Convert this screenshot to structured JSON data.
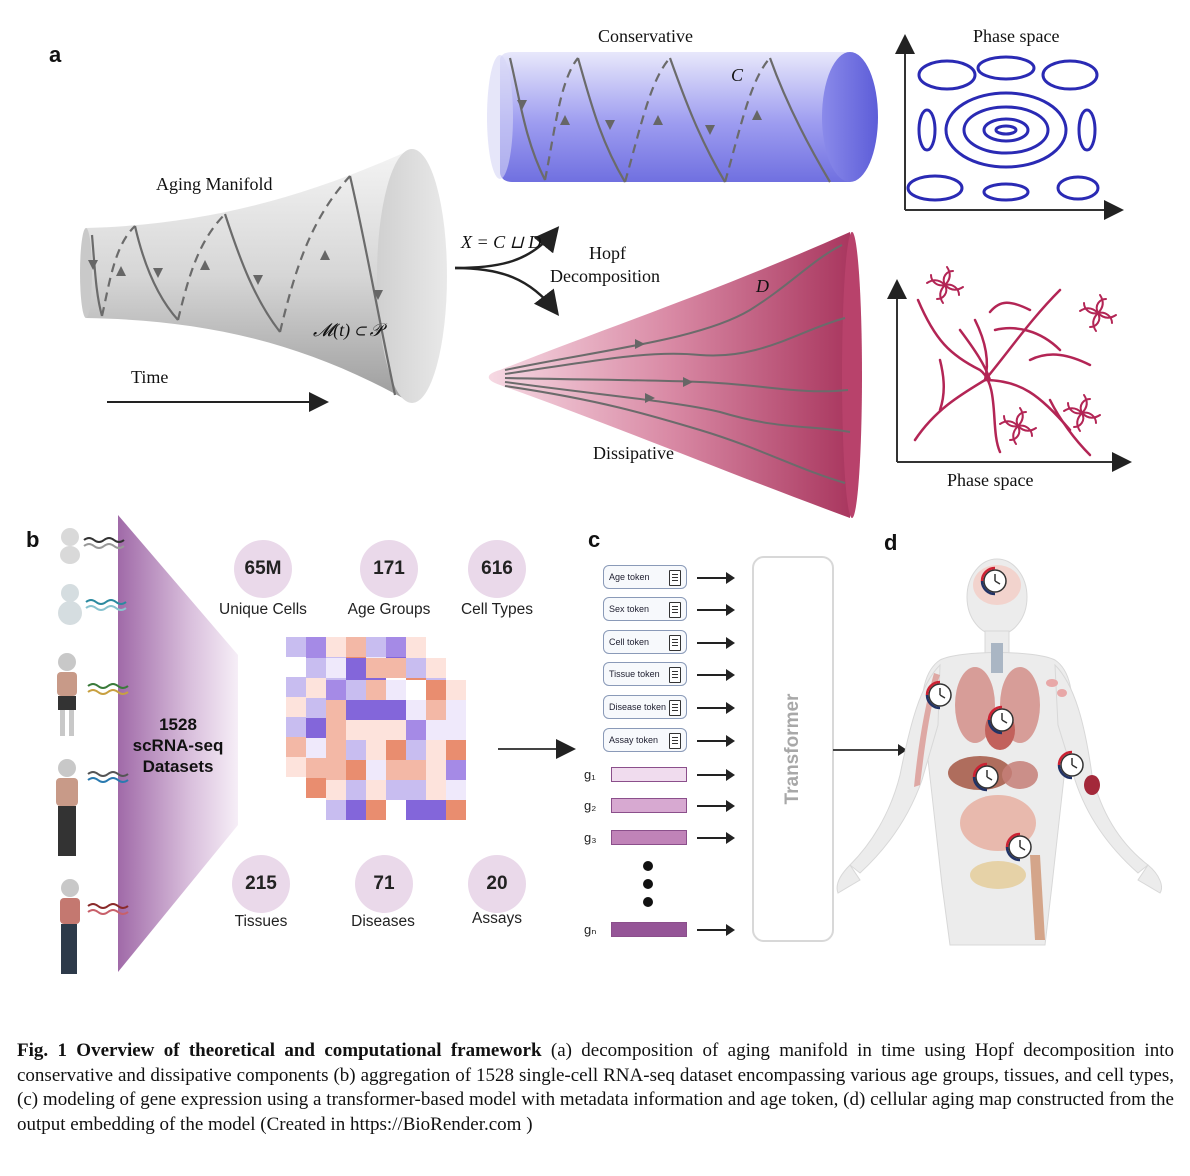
{
  "panel_a": {
    "label": "a",
    "conservative": "Conservative",
    "c_symbol": "C",
    "phase_space_top": "Phase space",
    "aging_manifold": "Aging Manifold",
    "equation": "X = C ⊔ D",
    "hopf_line1": "Hopf",
    "hopf_line2": "Decomposition",
    "manifold_formula": "𝓜(t) ⊂ 𝒫",
    "time": "Time",
    "d_symbol": "D",
    "dissipative": "Dissipative",
    "phase_space_bottom": "Phase space"
  },
  "panel_b": {
    "label": "b",
    "datasets_line1": "1528",
    "datasets_line2": "scRNA-seq",
    "datasets_line3": "Datasets",
    "stats": [
      {
        "value": "65M",
        "caption": "Unique Cells"
      },
      {
        "value": "171",
        "caption": "Age Groups"
      },
      {
        "value": "616",
        "caption": "Cell Types"
      },
      {
        "value": "215",
        "caption": "Tissues"
      },
      {
        "value": "71",
        "caption": "Diseases"
      },
      {
        "value": "20",
        "caption": "Assays"
      }
    ]
  },
  "panel_c": {
    "label": "c",
    "tokens": [
      "Age token",
      "Sex token",
      "Cell token",
      "Tissue token",
      "Disease token",
      "Assay token"
    ],
    "genes": [
      "g₁",
      "g₂",
      "g₃",
      "gₙ"
    ],
    "transformer": "Transformer"
  },
  "panel_d": {
    "label": "d"
  },
  "caption": {
    "bold": "Fig. 1  Overview of theoretical and computational framework",
    "text": " (a) decomposition of aging manifold in time using Hopf decomposition into conservative and dissipative components (b) aggregation of 1528 single-cell RNA-seq dataset encompassing various age groups, tissues, and cell types, (c) modeling of gene expression using a transformer-based model with metadata information and age token, (d) cellular aging map constructed from the output embedding of the model (Created in https://BioRender.com )"
  },
  "colors": {
    "conservative": "#6f6fe0",
    "dissipative": "#b2406a",
    "bubble": "#ead9ea",
    "gene_bar": "#c890c0"
  }
}
